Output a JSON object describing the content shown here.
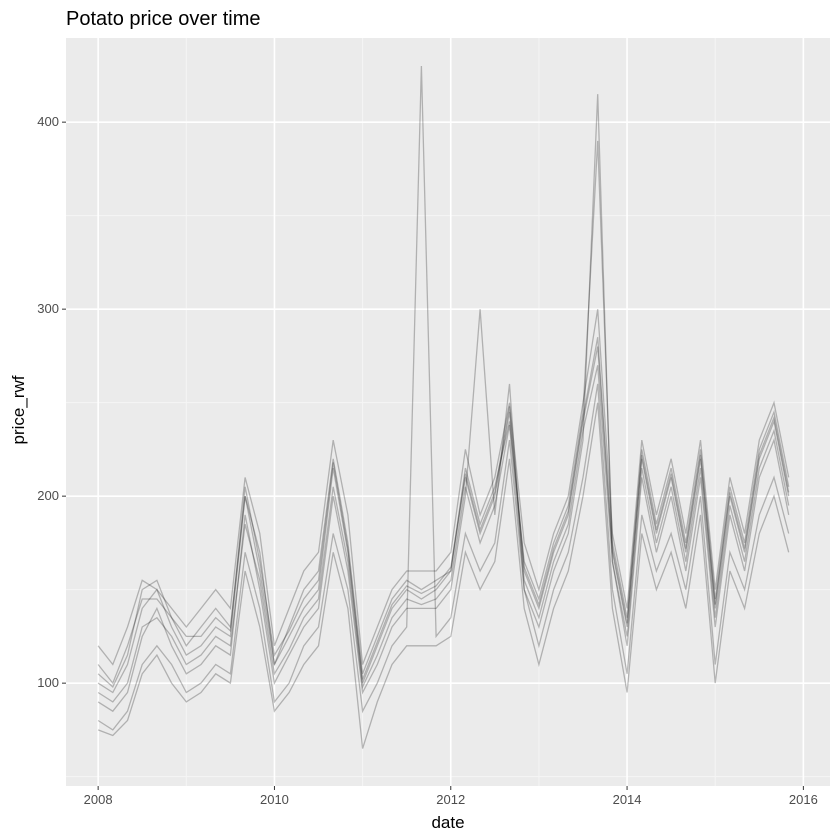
{
  "chart_data": {
    "type": "line",
    "title": "Potato price over time",
    "xlabel": "date",
    "ylabel": "price_rwf",
    "x_tick_labels": [
      "2008",
      "2010",
      "2012",
      "2014",
      "2016"
    ],
    "y_tick_labels": [
      "100",
      "200",
      "300",
      "400"
    ],
    "xlim": [
      "2007-08-20",
      "2016-04-20"
    ],
    "ylim": [
      45,
      445
    ],
    "grid": true,
    "legend": "none",
    "colors": {
      "panel_background": "#EBEBEB",
      "grid_major": "#FFFFFF",
      "grid_minor": "#F5F5F5",
      "line": "#000000"
    },
    "series": [
      {
        "x": [
          "2008-01",
          "2008-03",
          "2008-05",
          "2008-07",
          "2008-09",
          "2008-11",
          "2009-01",
          "2009-03",
          "2009-05",
          "2009-07",
          "2009-09",
          "2009-11",
          "2010-01",
          "2010-03",
          "2010-05",
          "2010-07",
          "2010-09",
          "2010-11",
          "2011-01",
          "2011-03",
          "2011-05",
          "2011-07",
          "2011-09",
          "2011-11",
          "2012-01",
          "2012-03",
          "2012-05",
          "2012-07",
          "2012-09",
          "2012-11",
          "2013-01",
          "2013-03",
          "2013-05",
          "2013-07",
          "2013-09",
          "2013-11",
          "2014-01",
          "2014-03",
          "2014-05",
          "2014-07",
          "2014-09",
          "2014-11",
          "2015-01",
          "2015-03",
          "2015-05",
          "2015-07",
          "2015-09",
          "2015-11"
        ],
        "y": [
          100,
          95,
          110,
          140,
          150,
          130,
          115,
          120,
          130,
          125,
          200,
          160,
          110,
          125,
          140,
          150,
          215,
          170,
          100,
          120,
          140,
          150,
          145,
          150,
          160,
          210,
          180,
          200,
          245,
          160,
          140,
          170,
          190,
          240,
          280,
          170,
          130,
          220,
          180,
          210,
          170,
          220,
          140,
          200,
          170,
          220,
          240,
          200
        ]
      },
      {
        "x": [
          "2008-01",
          "2008-03",
          "2008-05",
          "2008-07",
          "2008-09",
          "2008-11",
          "2009-01",
          "2009-03",
          "2009-05",
          "2009-07",
          "2009-09",
          "2009-11",
          "2010-01",
          "2010-03",
          "2010-05",
          "2010-07",
          "2010-09",
          "2010-11",
          "2011-01",
          "2011-03",
          "2011-05",
          "2011-07",
          "2011-09",
          "2011-11",
          "2012-01",
          "2012-03",
          "2012-05",
          "2012-07",
          "2012-09",
          "2012-11",
          "2013-01",
          "2013-03",
          "2013-05",
          "2013-07",
          "2013-09",
          "2013-11",
          "2014-01",
          "2014-03",
          "2014-05",
          "2014-07",
          "2014-09",
          "2014-11",
          "2015-01",
          "2015-03",
          "2015-05",
          "2015-07",
          "2015-09",
          "2015-11"
        ],
        "y": [
          80,
          75,
          85,
          110,
          120,
          110,
          95,
          100,
          110,
          105,
          170,
          140,
          90,
          100,
          120,
          130,
          180,
          150,
          85,
          100,
          120,
          130,
          430,
          125,
          135,
          180,
          160,
          175,
          230,
          150,
          120,
          150,
          170,
          210,
          260,
          150,
          105,
          190,
          160,
          180,
          150,
          200,
          110,
          170,
          150,
          190,
          210,
          180
        ]
      },
      {
        "x": [
          "2008-01",
          "2008-03",
          "2008-05",
          "2008-07",
          "2008-09",
          "2008-11",
          "2009-01",
          "2009-03",
          "2009-05",
          "2009-07",
          "2009-09",
          "2009-11",
          "2010-01",
          "2010-03",
          "2010-05",
          "2010-07",
          "2010-09",
          "2010-11",
          "2011-01",
          "2011-03",
          "2011-05",
          "2011-07",
          "2011-09",
          "2011-11",
          "2012-01",
          "2012-03",
          "2012-05",
          "2012-07",
          "2012-09",
          "2012-11",
          "2013-01",
          "2013-03",
          "2013-05",
          "2013-07",
          "2013-09",
          "2013-11",
          "2014-01",
          "2014-03",
          "2014-05",
          "2014-07",
          "2014-09",
          "2014-11",
          "2015-01",
          "2015-03",
          "2015-05",
          "2015-07",
          "2015-09",
          "2015-11"
        ],
        "y": [
          120,
          110,
          130,
          155,
          150,
          140,
          130,
          140,
          150,
          140,
          210,
          180,
          120,
          140,
          160,
          170,
          230,
          190,
          110,
          130,
          150,
          160,
          160,
          160,
          170,
          225,
          190,
          210,
          250,
          175,
          150,
          180,
          200,
          250,
          300,
          180,
          140,
          230,
          190,
          220,
          180,
          230,
          150,
          210,
          180,
          230,
          250,
          210
        ]
      },
      {
        "x": [
          "2008-01",
          "2008-03",
          "2008-05",
          "2008-07",
          "2008-09",
          "2008-11",
          "2009-01",
          "2009-03",
          "2009-05",
          "2009-07",
          "2009-09",
          "2009-11",
          "2010-01",
          "2010-03",
          "2010-05",
          "2010-07",
          "2010-09",
          "2010-11",
          "2011-01",
          "2011-03",
          "2011-05",
          "2011-07",
          "2011-09",
          "2011-11",
          "2012-01",
          "2012-03",
          "2012-05",
          "2012-07",
          "2012-09",
          "2012-11",
          "2013-01",
          "2013-03",
          "2013-05",
          "2013-07",
          "2013-09",
          "2013-11",
          "2014-01",
          "2014-03",
          "2014-05",
          "2014-07",
          "2014-09",
          "2014-11",
          "2015-01",
          "2015-03",
          "2015-05",
          "2015-07",
          "2015-09",
          "2015-11"
        ],
        "y": [
          90,
          85,
          95,
          125,
          140,
          120,
          105,
          110,
          120,
          115,
          190,
          150,
          100,
          115,
          130,
          140,
          200,
          160,
          95,
          110,
          130,
          140,
          140,
          140,
          150,
          200,
          300,
          190,
          260,
          150,
          130,
          160,
          180,
          230,
          415,
          165,
          120,
          210,
          170,
          200,
          160,
          210,
          130,
          190,
          160,
          210,
          230,
          190
        ]
      },
      {
        "x": [
          "2008-01",
          "2008-03",
          "2008-05",
          "2008-07",
          "2008-09",
          "2008-11",
          "2009-01",
          "2009-03",
          "2009-05",
          "2009-07",
          "2009-09",
          "2009-11",
          "2010-01",
          "2010-03",
          "2010-05",
          "2010-07",
          "2010-09",
          "2010-11",
          "2011-01",
          "2011-03",
          "2011-05",
          "2011-07",
          "2011-09",
          "2011-11",
          "2012-01",
          "2012-03",
          "2012-05",
          "2012-07",
          "2012-09",
          "2012-11",
          "2013-01",
          "2013-03",
          "2013-05",
          "2013-07",
          "2013-09",
          "2013-11",
          "2014-01",
          "2014-03",
          "2014-05",
          "2014-07",
          "2014-09",
          "2014-11",
          "2015-01",
          "2015-03",
          "2015-05",
          "2015-07",
          "2015-09",
          "2015-11"
        ],
        "y": [
          110,
          100,
          120,
          145,
          145,
          135,
          120,
          130,
          140,
          130,
          200,
          170,
          110,
          130,
          150,
          160,
          220,
          175,
          105,
          125,
          145,
          155,
          150,
          155,
          160,
          215,
          185,
          205,
          240,
          165,
          145,
          175,
          195,
          245,
          390,
          175,
          135,
          225,
          185,
          215,
          175,
          225,
          145,
          205,
          175,
          225,
          245,
          205
        ]
      },
      {
        "x": [
          "2008-01",
          "2008-03",
          "2008-05",
          "2008-07",
          "2008-09",
          "2008-11",
          "2009-01",
          "2009-03",
          "2009-05",
          "2009-07",
          "2009-09",
          "2009-11",
          "2010-01",
          "2010-03",
          "2010-05",
          "2010-07",
          "2010-09",
          "2010-11",
          "2011-01",
          "2011-03",
          "2011-05",
          "2011-07",
          "2011-09",
          "2011-11",
          "2012-01",
          "2012-03",
          "2012-05",
          "2012-07",
          "2012-09",
          "2012-11",
          "2013-01",
          "2013-03",
          "2013-05",
          "2013-07",
          "2013-09",
          "2013-11",
          "2014-01",
          "2014-03",
          "2014-05",
          "2014-07",
          "2014-09",
          "2014-11",
          "2015-01",
          "2015-03",
          "2015-05",
          "2015-07",
          "2015-09",
          "2015-11"
        ],
        "y": [
          75,
          72,
          80,
          105,
          115,
          100,
          90,
          95,
          105,
          100,
          160,
          130,
          85,
          95,
          110,
          120,
          170,
          140,
          65,
          90,
          110,
          120,
          120,
          120,
          125,
          170,
          150,
          165,
          220,
          140,
          110,
          140,
          160,
          200,
          250,
          140,
          95,
          180,
          150,
          170,
          140,
          190,
          100,
          160,
          140,
          180,
          200,
          170
        ]
      },
      {
        "x": [
          "2008-01",
          "2008-03",
          "2008-05",
          "2008-07",
          "2008-09",
          "2008-11",
          "2009-01",
          "2009-03",
          "2009-05",
          "2009-07",
          "2009-09",
          "2009-11",
          "2010-01",
          "2010-03",
          "2010-05",
          "2010-07",
          "2010-09",
          "2010-11",
          "2011-01",
          "2011-03",
          "2011-05",
          "2011-07",
          "2011-09",
          "2011-11",
          "2012-01",
          "2012-03",
          "2012-05",
          "2012-07",
          "2012-09",
          "2012-11",
          "2013-01",
          "2013-03",
          "2013-05",
          "2013-07",
          "2013-09",
          "2013-11",
          "2014-01",
          "2014-03",
          "2014-05",
          "2014-07",
          "2014-09",
          "2014-11",
          "2015-01",
          "2015-03",
          "2015-05",
          "2015-07",
          "2015-09",
          "2015-11"
        ],
        "y": [
          105,
          98,
          115,
          150,
          155,
          135,
          125,
          125,
          135,
          128,
          205,
          165,
          115,
          128,
          145,
          155,
          218,
          172,
          102,
          122,
          142,
          152,
          148,
          152,
          162,
          212,
          182,
          202,
          248,
          162,
          142,
          172,
          192,
          242,
          285,
          172,
          132,
          222,
          182,
          212,
          172,
          222,
          142,
          202,
          172,
          222,
          242,
          202
        ]
      },
      {
        "x": [
          "2008-01",
          "2008-03",
          "2008-05",
          "2008-07",
          "2008-09",
          "2008-11",
          "2009-01",
          "2009-03",
          "2009-05",
          "2009-07",
          "2009-09",
          "2009-11",
          "2010-01",
          "2010-03",
          "2010-05",
          "2010-07",
          "2010-09",
          "2010-11",
          "2011-01",
          "2011-03",
          "2011-05",
          "2011-07",
          "2011-09",
          "2011-11",
          "2012-01",
          "2012-03",
          "2012-05",
          "2012-07",
          "2012-09",
          "2012-11",
          "2013-01",
          "2013-03",
          "2013-05",
          "2013-07",
          "2013-09",
          "2013-11",
          "2014-01",
          "2014-03",
          "2014-05",
          "2014-07",
          "2014-09",
          "2014-11",
          "2015-01",
          "2015-03",
          "2015-05",
          "2015-07",
          "2015-09",
          "2015-11"
        ],
        "y": [
          95,
          90,
          100,
          130,
          135,
          125,
          110,
          115,
          125,
          120,
          185,
          155,
          105,
          118,
          135,
          145,
          205,
          165,
          98,
          115,
          135,
          145,
          142,
          145,
          155,
          205,
          175,
          195,
          238,
          155,
          135,
          165,
          185,
          235,
          270,
          165,
          125,
          215,
          175,
          205,
          165,
          215,
          135,
          195,
          165,
          215,
          235,
          195
        ]
      }
    ]
  }
}
